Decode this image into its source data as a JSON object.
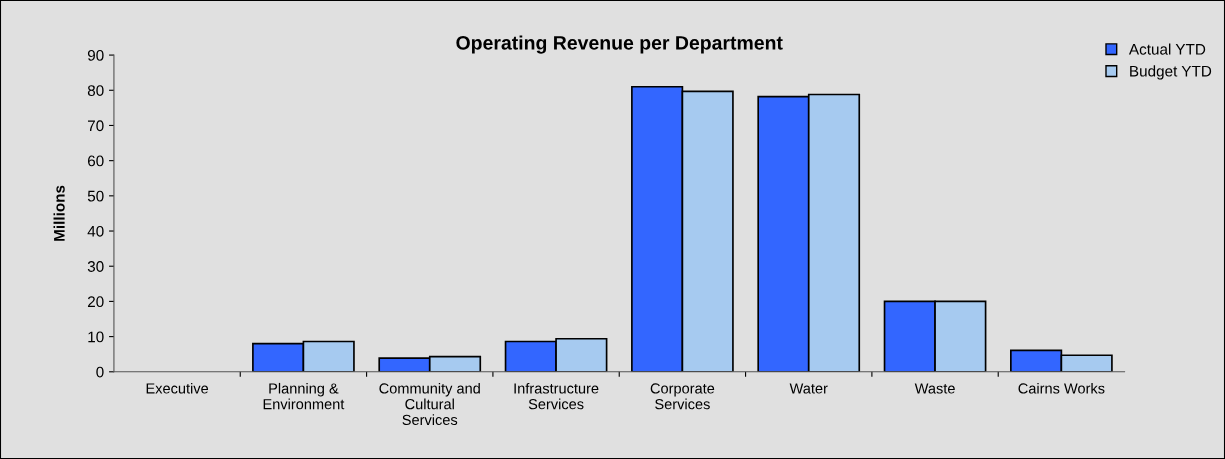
{
  "chart_data": {
    "type": "bar",
    "title": "Operating Revenue per Department",
    "ylabel": "Millions",
    "categories": [
      "Executive",
      "Planning &\nEnvironment",
      "Community and\nCultural\nServices",
      "Infrastructure\nServices",
      "Corporate\nServices",
      "Water",
      "Waste",
      "Cairns Works"
    ],
    "series": [
      {
        "name": "Actual YTD",
        "color": "#3366ff",
        "values": [
          null,
          8.0,
          3.9,
          8.6,
          81.0,
          78.2,
          20.0,
          6.1
        ]
      },
      {
        "name": "Budget YTD",
        "color": "#a6caf0",
        "values": [
          null,
          8.6,
          4.3,
          9.4,
          79.7,
          78.8,
          20.0,
          4.7
        ]
      }
    ],
    "ylim": [
      0,
      90
    ],
    "yticks": [
      0,
      10,
      20,
      30,
      40,
      50,
      60,
      70,
      80,
      90
    ],
    "grid": false,
    "legend": "top right"
  }
}
